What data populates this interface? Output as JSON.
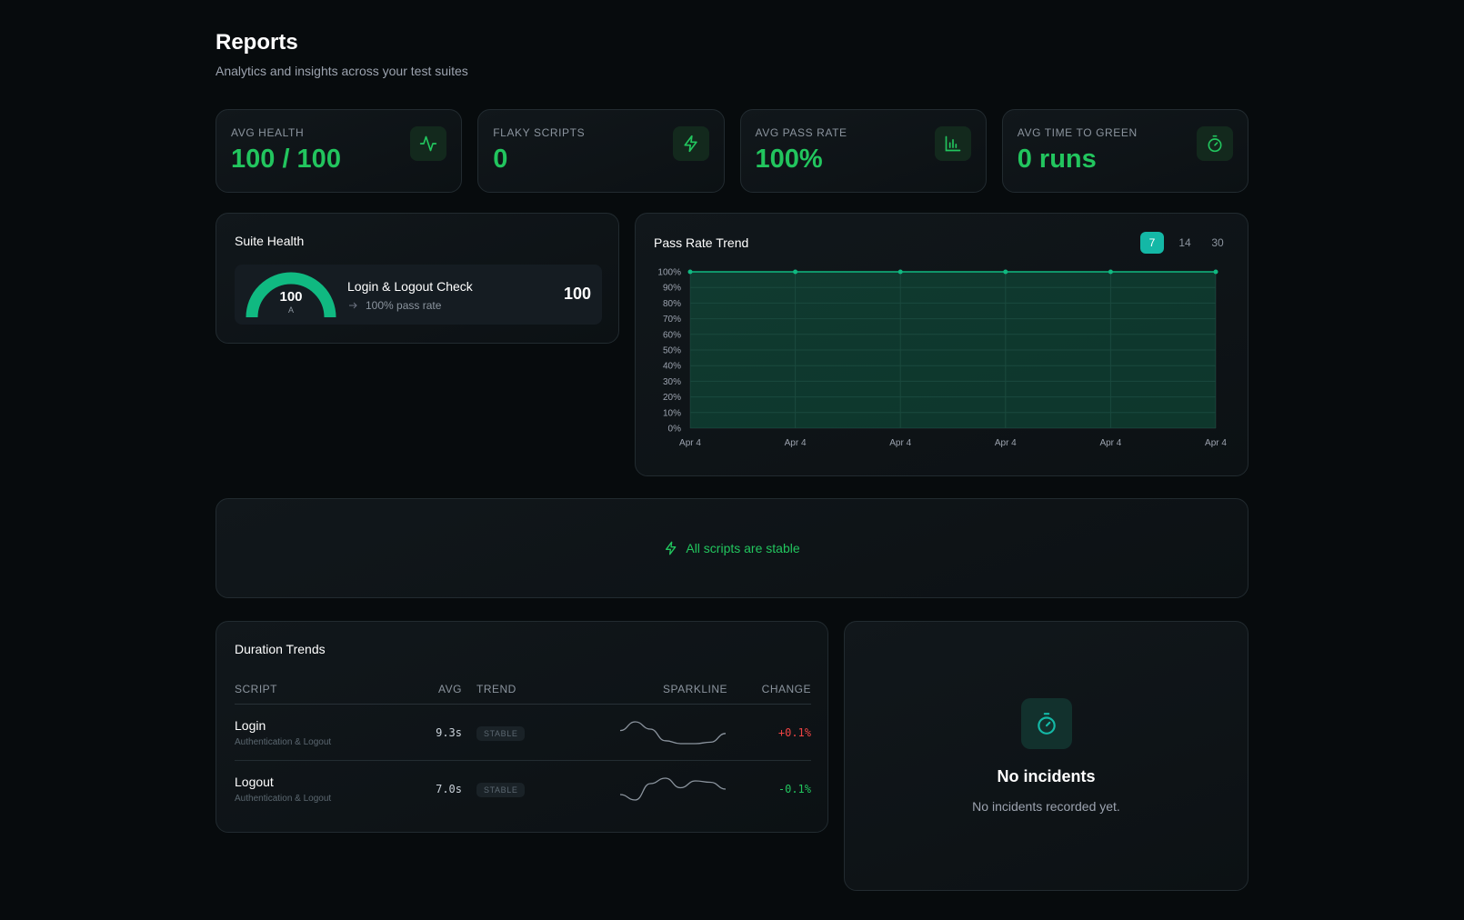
{
  "header": {
    "title": "Reports",
    "subtitle": "Analytics and insights across your test suites"
  },
  "stats": [
    {
      "label": "AVG HEALTH",
      "value": "100 / 100"
    },
    {
      "label": "FLAKY SCRIPTS",
      "value": "0"
    },
    {
      "label": "AVG PASS RATE",
      "value": "100%"
    },
    {
      "label": "AVG TIME TO GREEN",
      "value": "0 runs"
    }
  ],
  "suite_health": {
    "title": "Suite Health",
    "items": [
      {
        "score": 100,
        "range": [
          0,
          100
        ],
        "grade": "A",
        "name": "Login & Logout Check",
        "pass_rate": "100% pass rate",
        "color": "#10b981"
      }
    ]
  },
  "pass_rate_trend": {
    "title": "Pass Rate Trend",
    "ranges": [
      "7",
      "14",
      "30"
    ],
    "active_range": 0,
    "chart": {
      "type": "line",
      "categories": [
        "Apr 4",
        "Apr 4",
        "Apr 4",
        "Apr 4",
        "Apr 4",
        "Apr 4"
      ],
      "series": [
        {
          "color": "#10b981",
          "values": [
            100,
            100,
            100,
            100,
            100,
            100
          ]
        }
      ],
      "ylim": [
        0,
        100
      ],
      "yticks": [
        {
          "value": 0,
          "label": "0%"
        },
        {
          "value": 10,
          "label": "10%"
        },
        {
          "value": 20,
          "label": "20%"
        },
        {
          "value": 30,
          "label": "30%"
        },
        {
          "value": 40,
          "label": "40%"
        },
        {
          "value": 50,
          "label": "50%"
        },
        {
          "value": 60,
          "label": "60%"
        },
        {
          "value": 70,
          "label": "70%"
        },
        {
          "value": 80,
          "label": "80%"
        },
        {
          "value": 90,
          "label": "90%"
        },
        {
          "value": 100,
          "label": "100%"
        }
      ],
      "grid": true
    }
  },
  "stability": {
    "message": "All scripts are stable"
  },
  "duration": {
    "title": "Duration Trends",
    "columns": [
      "SCRIPT",
      "AVG",
      "TREND",
      "SPARKLINE",
      "CHANGE"
    ],
    "rows": [
      {
        "script": "Login",
        "suite": "Authentication & Logout",
        "avg": "9.3s",
        "trend": "STABLE",
        "sparkline": [
          0.55,
          0.85,
          0.6,
          0.2,
          0.1,
          0.1,
          0.15,
          0.45
        ],
        "change": "+0.1%",
        "change_color": "#ef4444"
      },
      {
        "script": "Logout",
        "suite": "Authentication & Logout",
        "avg": "7.0s",
        "trend": "STABLE",
        "sparkline": [
          0.3,
          0.1,
          0.7,
          0.9,
          0.55,
          0.8,
          0.75,
          0.5
        ],
        "change": "-0.1%",
        "change_color": "#22c55e"
      }
    ]
  },
  "incidents": {
    "title": "No incidents",
    "message": "No incidents recorded yet."
  }
}
